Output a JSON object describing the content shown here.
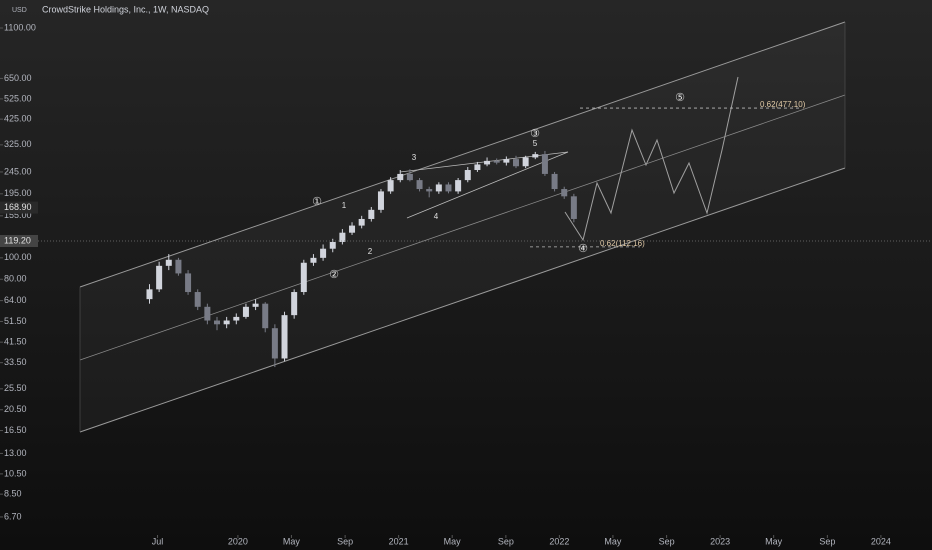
{
  "chart_data": {
    "type": "candlestick",
    "title": "CrowdStrike Holdings, Inc., 1W, NASDAQ",
    "currency": "USD",
    "log_scale": true,
    "up_color": "#d1d4dc",
    "down_color": "#787b86",
    "x": [
      2019.45,
      2019.51,
      2019.57,
      2019.63,
      2019.69,
      2019.75,
      2019.81,
      2019.87,
      2019.93,
      2019.99,
      2020.05,
      2020.11,
      2020.17,
      2020.23,
      2020.29,
      2020.35,
      2020.41,
      2020.47,
      2020.53,
      2020.59,
      2020.65,
      2020.71,
      2020.77,
      2020.83,
      2020.89,
      2020.95,
      2021.01,
      2021.07,
      2021.13,
      2021.19,
      2021.25,
      2021.31,
      2021.37,
      2021.43,
      2021.49,
      2021.55,
      2021.61,
      2021.67,
      2021.73,
      2021.79,
      2021.85,
      2021.91,
      2021.97,
      2022.03,
      2022.09
    ],
    "open": [
      65,
      72,
      92,
      98,
      85,
      70,
      60,
      52,
      50,
      52,
      54,
      60,
      62,
      48,
      35,
      55,
      70,
      95,
      100,
      110,
      118,
      130,
      140,
      150,
      165,
      200,
      225,
      240,
      225,
      205,
      200,
      215,
      200,
      225,
      250,
      265,
      275,
      270,
      280,
      260,
      285,
      295,
      240,
      205,
      190
    ],
    "high": [
      76,
      96,
      104,
      100,
      88,
      72,
      62,
      54,
      54,
      56,
      62,
      65,
      63,
      50,
      57,
      72,
      98,
      104,
      115,
      122,
      135,
      145,
      155,
      170,
      205,
      232,
      250,
      252,
      230,
      210,
      220,
      220,
      230,
      258,
      272,
      285,
      282,
      288,
      290,
      290,
      302,
      305,
      245,
      210,
      195
    ],
    "low": [
      62,
      70,
      88,
      83,
      68,
      58,
      50,
      47,
      48,
      50,
      53,
      58,
      46,
      32,
      34,
      53,
      68,
      92,
      97,
      106,
      115,
      127,
      136,
      146,
      160,
      195,
      220,
      222,
      200,
      188,
      195,
      196,
      195,
      220,
      245,
      260,
      265,
      262,
      255,
      255,
      280,
      235,
      200,
      185,
      145
    ],
    "close": [
      72,
      92,
      98,
      85,
      70,
      60,
      52,
      50,
      52,
      54,
      60,
      62,
      48,
      35,
      55,
      70,
      95,
      100,
      110,
      118,
      130,
      140,
      150,
      165,
      200,
      225,
      240,
      225,
      205,
      200,
      215,
      200,
      225,
      250,
      265,
      275,
      270,
      280,
      260,
      285,
      295,
      240,
      205,
      190,
      150
    ],
    "xlim": [
      2018.52,
      2024.318
    ],
    "ylim": [
      5.55,
      1473
    ],
    "xticks": [
      {
        "value": 2019.5,
        "label": "Jul"
      },
      2020,
      {
        "value": 2020.333,
        "label": "May"
      },
      {
        "value": 2020.667,
        "label": "Sep"
      },
      2021,
      {
        "value": 2021.333,
        "label": "May"
      },
      {
        "value": 2021.667,
        "label": "Sep"
      },
      2022,
      {
        "value": 2022.333,
        "label": "May"
      },
      {
        "value": 2022.667,
        "label": "Sep"
      },
      2023,
      {
        "value": 2023.333,
        "label": "May"
      },
      {
        "value": 2023.667,
        "label": "Sep"
      },
      2024
    ],
    "yticks": [
      {
        "value": 6.7,
        "label": "6.70"
      },
      {
        "value": 8.5,
        "label": "8.50"
      },
      {
        "value": 10.5,
        "label": "10.50"
      },
      {
        "value": 13,
        "label": "13.00"
      },
      {
        "value": 16.5,
        "label": "16.50"
      },
      {
        "value": 20.5,
        "label": "20.50"
      },
      {
        "value": 25.5,
        "label": "25.50"
      },
      {
        "value": 33.5,
        "label": "33.50"
      },
      {
        "value": 41.5,
        "label": "41.50"
      },
      {
        "value": 51.5,
        "label": "51.50"
      },
      {
        "value": 64,
        "label": "64.00"
      },
      {
        "value": 80,
        "label": "80.00"
      },
      {
        "value": 100,
        "label": "100.00"
      },
      {
        "value": 155,
        "label": "155.00"
      },
      {
        "value": 195,
        "label": "195.00"
      },
      {
        "value": 245,
        "label": "245.00"
      },
      {
        "value": 325,
        "label": "325.00"
      },
      {
        "value": 425,
        "label": "425.00"
      },
      {
        "value": 525,
        "label": "525.00"
      },
      {
        "value": 650,
        "label": "650.00"
      },
      {
        "value": 1100,
        "label": "1100.00"
      }
    ],
    "price_labels": [
      {
        "value": 168.9,
        "label": "168.90"
      },
      {
        "value": 119.2,
        "label": "119.20"
      }
    ],
    "fib_levels": [
      {
        "value": 477.1,
        "label": "0.62(477.10)"
      },
      {
        "value": 112.16,
        "label": "0.62(112.16)"
      }
    ],
    "wave_labels": [
      "1",
      "2",
      "3",
      "4",
      "5",
      "①",
      "②",
      "③",
      "④",
      "⑤"
    ]
  }
}
